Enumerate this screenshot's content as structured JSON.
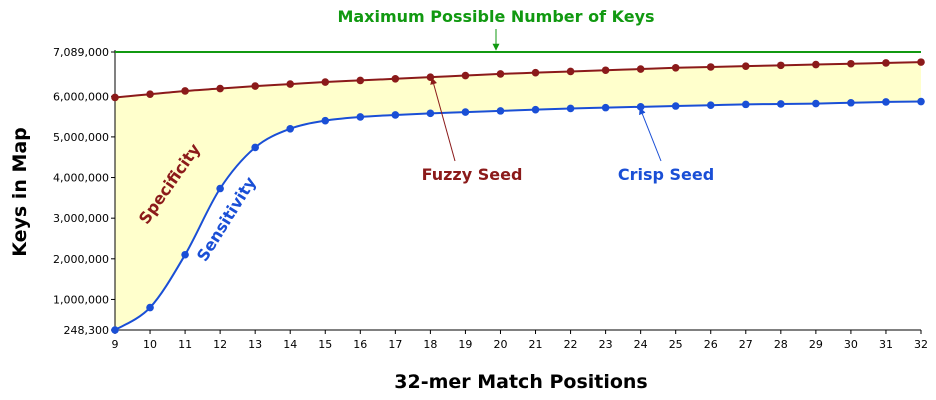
{
  "chart_data": {
    "type": "line",
    "xlabel": "32-mer Match Positions",
    "ylabel": "Keys in Map",
    "x": [
      9,
      10,
      11,
      12,
      13,
      14,
      15,
      16,
      17,
      18,
      19,
      20,
      21,
      22,
      23,
      24,
      25,
      26,
      27,
      28,
      29,
      30,
      31,
      32
    ],
    "xlim": [
      9,
      32
    ],
    "ylim": [
      248300,
      7089000
    ],
    "y_ticks": [
      248300,
      1000000,
      2000000,
      3000000,
      4000000,
      5000000,
      6000000,
      7089000
    ],
    "y_tick_labels": [
      "248,300",
      "1,000,000",
      "2,000,000",
      "3,000,000",
      "4,000,000",
      "5,000,000",
      "6,000,000",
      "7,089,000"
    ],
    "grid": false,
    "series": [
      {
        "name": "Fuzzy Seed",
        "color": "#8b1a1a",
        "values": [
          5970000,
          6050000,
          6130000,
          6190000,
          6250000,
          6300000,
          6350000,
          6390000,
          6430000,
          6470000,
          6510000,
          6550000,
          6580000,
          6610000,
          6640000,
          6670000,
          6700000,
          6720000,
          6740000,
          6760000,
          6780000,
          6800000,
          6820000,
          6840000
        ]
      },
      {
        "name": "Crisp Seed",
        "color": "#1a4fd6",
        "values": [
          248300,
          800000,
          2100000,
          3730000,
          4740000,
          5200000,
          5400000,
          5490000,
          5540000,
          5580000,
          5610000,
          5640000,
          5670000,
          5700000,
          5720000,
          5740000,
          5760000,
          5780000,
          5800000,
          5810000,
          5820000,
          5840000,
          5860000,
          5870000
        ]
      }
    ],
    "reference_line": {
      "label": "Maximum Possible Number of Keys",
      "value": 7089000,
      "color": "#119911"
    },
    "region_labels": {
      "upper": "Specificity",
      "lower": "Sensitivity"
    },
    "fill_color": "#ffffcc"
  }
}
